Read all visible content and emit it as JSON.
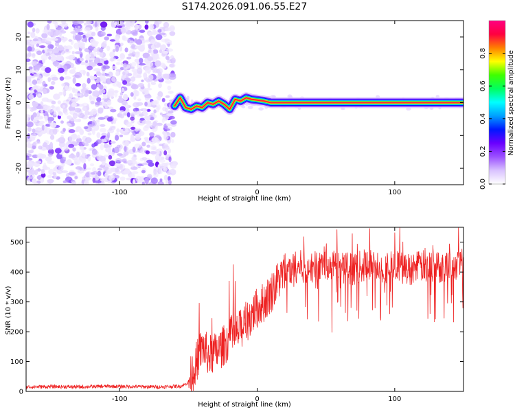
{
  "title": "S174.2026.091.06.55.E27",
  "chart_data": [
    {
      "type": "heatmap",
      "name": "spectrogram",
      "xlabel": "Height of straight line (km)",
      "ylabel": "Frequency (Hz)",
      "xlim": [
        -168,
        150
      ],
      "ylim": [
        -25,
        25
      ],
      "xticks": [
        -100,
        0,
        100
      ],
      "yticks": [
        20,
        10,
        0,
        -10,
        -20
      ],
      "noise_region_x": [
        -168,
        -60
      ],
      "signal_trace": [
        {
          "x": -60,
          "y": -1.0
        },
        {
          "x": -56,
          "y": 1.5
        },
        {
          "x": -52,
          "y": -1.5
        },
        {
          "x": -48,
          "y": -2.0
        },
        {
          "x": -44,
          "y": -1.0
        },
        {
          "x": -40,
          "y": -1.5
        },
        {
          "x": -36,
          "y": 0.0
        },
        {
          "x": -32,
          "y": -0.5
        },
        {
          "x": -28,
          "y": 0.5
        },
        {
          "x": -24,
          "y": -0.5
        },
        {
          "x": -20,
          "y": -2.0
        },
        {
          "x": -16,
          "y": 1.0
        },
        {
          "x": -12,
          "y": 0.5
        },
        {
          "x": -8,
          "y": 1.5
        },
        {
          "x": -4,
          "y": 1.0
        },
        {
          "x": 0,
          "y": 0.8
        },
        {
          "x": 5,
          "y": 0.5
        },
        {
          "x": 10,
          "y": 0.0
        },
        {
          "x": 150,
          "y": 0.0
        }
      ],
      "colorbar": {
        "label": "Normalized spectral amplitude",
        "ticks": [
          "0.0",
          "0.2",
          "0.4",
          "0.6",
          "0.8"
        ],
        "range": [
          0,
          1
        ],
        "colors": [
          "#ffffff",
          "#d9c2ff",
          "#9b50ff",
          "#6a00ff",
          "#0018ff",
          "#00a0ff",
          "#00ffff",
          "#00ff60",
          "#40ff00",
          "#ffff00",
          "#ff8000",
          "#ff0040",
          "#ff0080"
        ]
      }
    },
    {
      "type": "line",
      "name": "snr",
      "xlabel": "Height of straight line (km)",
      "ylabel": "SNR (10 * v/v)",
      "xlim": [
        -168,
        150
      ],
      "ylim": [
        0,
        550
      ],
      "xticks": [
        -100,
        0,
        100
      ],
      "yticks": [
        0,
        100,
        200,
        300,
        400,
        500
      ],
      "color": "#ee2222",
      "x": [
        -168,
        -150,
        -130,
        -110,
        -90,
        -70,
        -55,
        -50,
        -45,
        -40,
        -35,
        -30,
        -25,
        -20,
        -15,
        -10,
        -5,
        0,
        5,
        10,
        15,
        20,
        25,
        30,
        40,
        50,
        60,
        70,
        80,
        90,
        100,
        110,
        120,
        130,
        140,
        150
      ],
      "y": [
        15,
        16,
        15,
        17,
        16,
        15,
        18,
        30,
        90,
        150,
        120,
        130,
        150,
        180,
        190,
        220,
        250,
        280,
        300,
        330,
        370,
        400,
        410,
        420,
        415,
        425,
        420,
        410,
        425,
        415,
        420,
        410,
        420,
        415,
        425,
        430
      ]
    }
  ]
}
